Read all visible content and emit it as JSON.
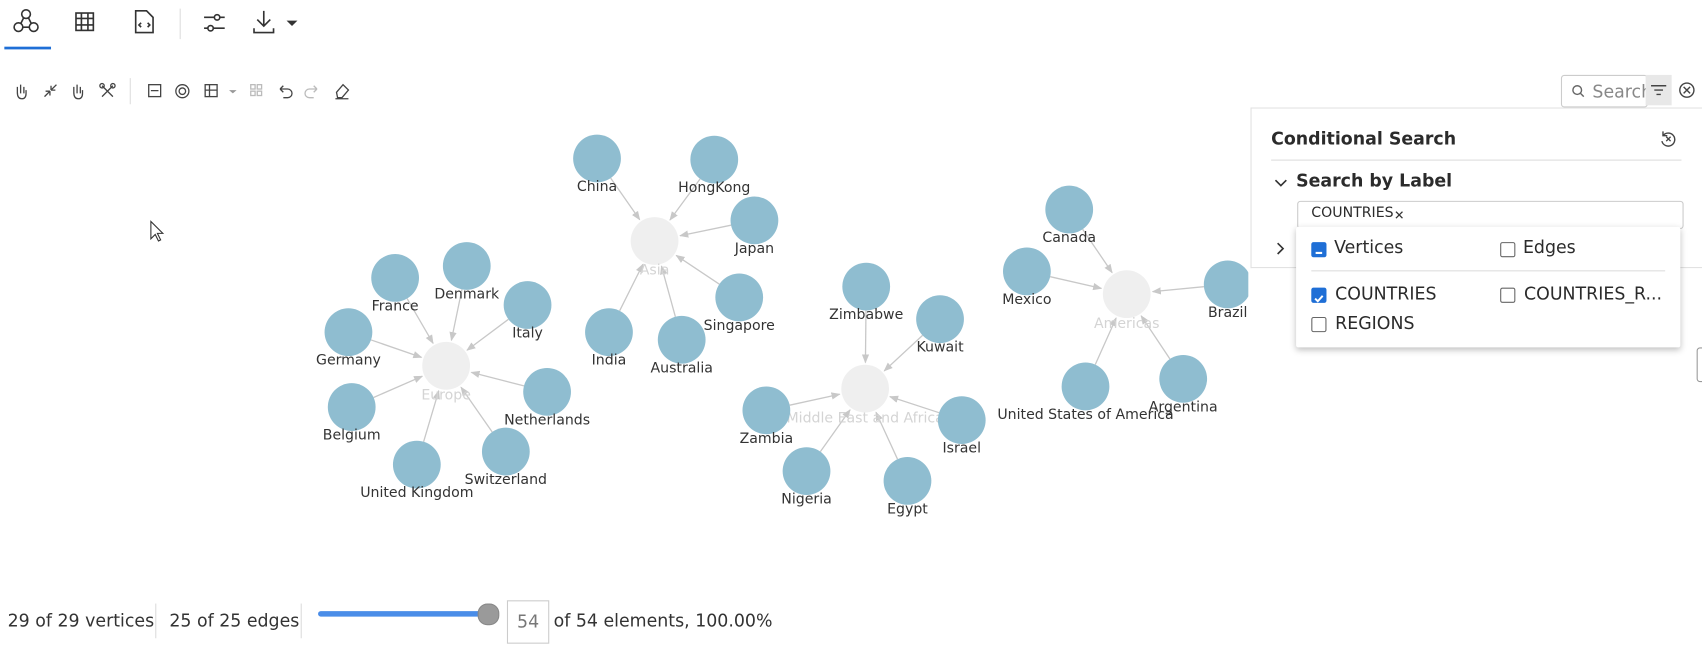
{
  "toolbar": {
    "search_placeholder": "Search"
  },
  "graph": {
    "clusters": [
      {
        "hub": "Asia",
        "members": [
          "China",
          "HongKong",
          "Japan",
          "Singapore",
          "Australia",
          "India"
        ]
      },
      {
        "hub": "Europe",
        "members": [
          "France",
          "Denmark",
          "Italy",
          "Netherlands",
          "Switzerland",
          "United Kingdom",
          "Belgium",
          "Germany"
        ]
      },
      {
        "hub": "Middle East and Africa",
        "members": [
          "Zimbabwe",
          "Kuwait",
          "Israel",
          "Egypt",
          "Nigeria",
          "Zambia"
        ]
      },
      {
        "hub": "Americas",
        "members": [
          "Canada",
          "Mexico",
          "Brazil",
          "Argentina",
          "United States of America"
        ]
      }
    ]
  },
  "search_panel": {
    "title": "Conditional Search",
    "section": "Search by Label",
    "chip": "COUNTRIES",
    "vertices": "Vertices",
    "edges": "Edges",
    "labels": [
      "COUNTRIES",
      "COUNTRIES_R...",
      "REGIONS"
    ]
  },
  "status": {
    "vertices": "29 of 29 vertices",
    "edges": "25 of 25 edges",
    "slider_value": "54",
    "elements": "of 54 elements, 100.00%"
  }
}
